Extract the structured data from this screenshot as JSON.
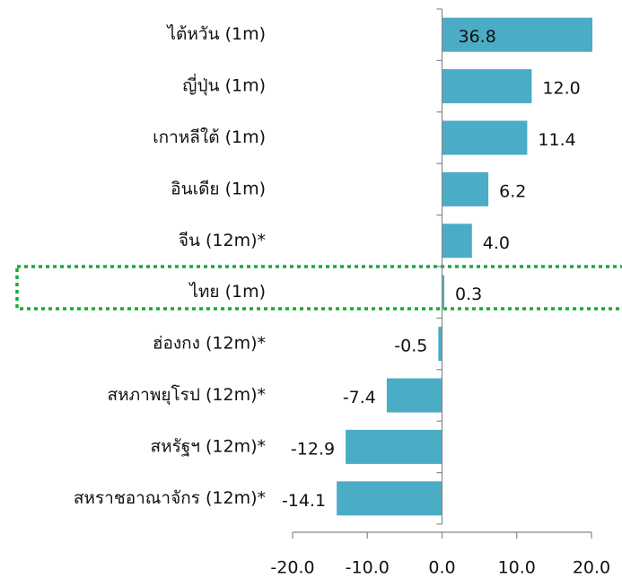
{
  "chart_data": {
    "type": "barh",
    "categories": [
      "ไต้หวัน (1m)",
      "ญี่ปุ่น (1m)",
      "เกาหลีใต้ (1m)",
      "อินเดีย (1m)",
      "จีน (12m)*",
      "ไทย (1m)",
      "ฮ่องกง (12m)*",
      "สหภาพยุโรป (12m)*",
      "สหรัฐฯ (12m)*",
      "สหราชอาณาจักร (12m)*"
    ],
    "values": [
      36.8,
      12.0,
      11.4,
      6.2,
      4.0,
      0.3,
      -0.5,
      -7.4,
      -12.9,
      -14.1
    ],
    "value_labels": [
      "36.8",
      "12.0",
      "11.4",
      "6.2",
      "4.0",
      "0.3",
      "-0.5",
      "-7.4",
      "-12.9",
      "-14.1"
    ],
    "color": "#4bacc6",
    "xlim": [
      -20,
      20
    ],
    "xticks": [
      {
        "value": -20,
        "label": "-20.0"
      },
      {
        "value": -10,
        "label": "-10.0"
      },
      {
        "value": 0,
        "label": "0.0"
      },
      {
        "value": 10,
        "label": "10.0"
      },
      {
        "value": 20,
        "label": "20.0"
      }
    ]
  }
}
